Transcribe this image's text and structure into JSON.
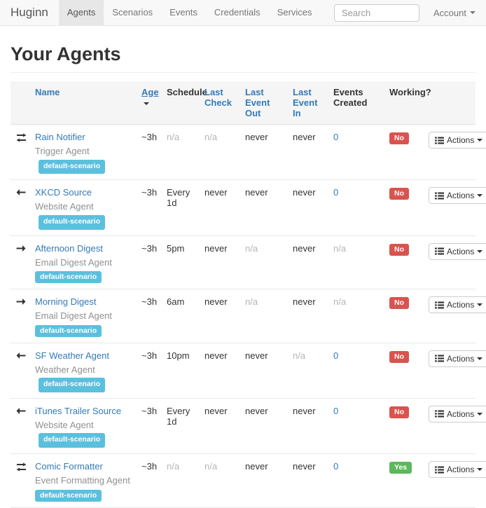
{
  "navbar": {
    "brand": "Huginn",
    "items": [
      {
        "label": "Agents",
        "active": true
      },
      {
        "label": "Scenarios",
        "active": false
      },
      {
        "label": "Events",
        "active": false
      },
      {
        "label": "Credentials",
        "active": false
      },
      {
        "label": "Services",
        "active": false
      }
    ],
    "search_placeholder": "Search",
    "account_label": "Account"
  },
  "page": {
    "title": "Your Agents"
  },
  "colors": {
    "link": "#337ab7",
    "scenario_badge": "#5bc0de",
    "working_no": "#d9534f",
    "working_yes": "#5cb85c",
    "navbar_bg": "#f8f8f8"
  },
  "table": {
    "actions_label": "Actions",
    "headers": [
      {
        "label": "Name",
        "link": true,
        "sorted": false
      },
      {
        "label": "Age",
        "link": true,
        "sorted": true
      },
      {
        "label": "Schedule",
        "link": false,
        "sorted": false
      },
      {
        "label": "Last Check",
        "link": true,
        "sorted": false
      },
      {
        "label": "Last Event Out",
        "link": true,
        "sorted": false
      },
      {
        "label": "Last Event In",
        "link": true,
        "sorted": false
      },
      {
        "label": "Events Created",
        "link": false,
        "sorted": false
      },
      {
        "label": "Working?",
        "link": false,
        "sorted": false
      }
    ],
    "rows": [
      {
        "direction_icon": "exchange",
        "name": "Rain Notifier",
        "agent_type": "Trigger Agent",
        "scenario_badge": "default-scenario",
        "badge_block": false,
        "age": {
          "text": "~3h",
          "muted": false
        },
        "schedule": {
          "text": "n/a",
          "muted": true
        },
        "last_check": {
          "text": "n/a",
          "muted": true
        },
        "last_event_out": {
          "text": "never",
          "muted": false
        },
        "last_event_in": {
          "text": "never",
          "muted": false
        },
        "events_created": {
          "text": "0",
          "muted": false,
          "link": true
        },
        "working": "No"
      },
      {
        "direction_icon": "arrow-left",
        "name": "XKCD Source",
        "agent_type": "Website Agent",
        "scenario_badge": "default-scenario",
        "badge_block": false,
        "age": {
          "text": "~3h",
          "muted": false
        },
        "schedule": {
          "text": "Every 1d",
          "muted": false
        },
        "last_check": {
          "text": "never",
          "muted": false
        },
        "last_event_out": {
          "text": "never",
          "muted": false
        },
        "last_event_in": {
          "text": "never",
          "muted": false
        },
        "events_created": {
          "text": "0",
          "muted": false,
          "link": true
        },
        "working": "No"
      },
      {
        "direction_icon": "arrow-right",
        "name": "Afternoon Digest",
        "agent_type": "Email Digest Agent",
        "scenario_badge": "default-scenario",
        "badge_block": true,
        "age": {
          "text": "~3h",
          "muted": false
        },
        "schedule": {
          "text": "5pm",
          "muted": false
        },
        "last_check": {
          "text": "never",
          "muted": false
        },
        "last_event_out": {
          "text": "n/a",
          "muted": true
        },
        "last_event_in": {
          "text": "never",
          "muted": false
        },
        "events_created": {
          "text": "n/a",
          "muted": true,
          "link": false
        },
        "working": "No"
      },
      {
        "direction_icon": "arrow-right",
        "name": "Morning Digest",
        "agent_type": "Email Digest Agent",
        "scenario_badge": "default-scenario",
        "badge_block": true,
        "age": {
          "text": "~3h",
          "muted": false
        },
        "schedule": {
          "text": "6am",
          "muted": false
        },
        "last_check": {
          "text": "never",
          "muted": false
        },
        "last_event_out": {
          "text": "n/a",
          "muted": true
        },
        "last_event_in": {
          "text": "never",
          "muted": false
        },
        "events_created": {
          "text": "n/a",
          "muted": true,
          "link": false
        },
        "working": "No"
      },
      {
        "direction_icon": "arrow-left",
        "name": "SF Weather Agent",
        "agent_type": "Weather Agent",
        "scenario_badge": "default-scenario",
        "badge_block": false,
        "age": {
          "text": "~3h",
          "muted": false
        },
        "schedule": {
          "text": "10pm",
          "muted": false
        },
        "last_check": {
          "text": "never",
          "muted": false
        },
        "last_event_out": {
          "text": "never",
          "muted": false
        },
        "last_event_in": {
          "text": "n/a",
          "muted": true
        },
        "events_created": {
          "text": "0",
          "muted": false,
          "link": true
        },
        "working": "No"
      },
      {
        "direction_icon": "arrow-left",
        "name": "iTunes Trailer Source",
        "agent_type": "Website Agent",
        "scenario_badge": "default-scenario",
        "badge_block": false,
        "age": {
          "text": "~3h",
          "muted": false
        },
        "schedule": {
          "text": "Every 1d",
          "muted": false
        },
        "last_check": {
          "text": "never",
          "muted": false
        },
        "last_event_out": {
          "text": "never",
          "muted": false
        },
        "last_event_in": {
          "text": "never",
          "muted": false
        },
        "events_created": {
          "text": "0",
          "muted": false,
          "link": true
        },
        "working": "No"
      },
      {
        "direction_icon": "exchange",
        "name": "Comic Formatter",
        "agent_type": "Event Formatting Agent",
        "scenario_badge": "default-scenario",
        "badge_block": true,
        "age": {
          "text": "~3h",
          "muted": false
        },
        "schedule": {
          "text": "n/a",
          "muted": true
        },
        "last_check": {
          "text": "n/a",
          "muted": true
        },
        "last_event_out": {
          "text": "never",
          "muted": false
        },
        "last_event_in": {
          "text": "never",
          "muted": false
        },
        "events_created": {
          "text": "0",
          "muted": false,
          "link": true
        },
        "working": "Yes"
      }
    ]
  }
}
